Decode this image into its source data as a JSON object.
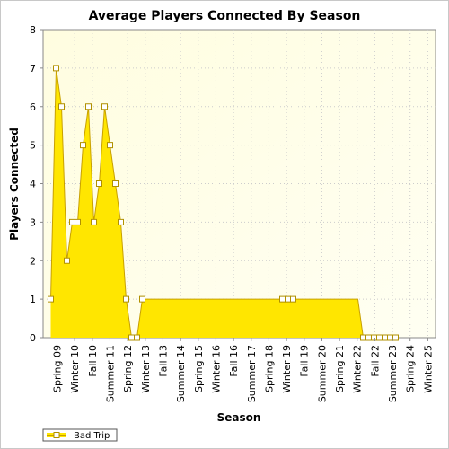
{
  "chart_data": {
    "type": "area",
    "title": "Average Players Connected By Season",
    "xlabel": "Season",
    "ylabel": "Players Connected",
    "ylim": [
      0,
      8
    ],
    "yticks": [
      "0",
      "1",
      "2",
      "3",
      "4",
      "5",
      "6",
      "7",
      "8"
    ],
    "xtick_labels": [
      "Spring 09",
      "Winter 10",
      "Fall 10",
      "Summer 11",
      "Spring 12",
      "Winter 13",
      "Fall 13",
      "Summer 14",
      "Spring 15",
      "Winter 16",
      "Fall 16",
      "Summer 17",
      "Spring 18",
      "Winter 19",
      "Fall 19",
      "Summer 20",
      "Spring 21",
      "Winter 22",
      "Fall 22",
      "Summer 23",
      "Spring 24",
      "Winter 25"
    ],
    "grid": true,
    "legend_position": "bottom-left",
    "series": [
      {
        "name": "Bad Trip",
        "color": "#ffe600",
        "line_color": "#c8a000",
        "values": [
          1,
          7,
          6,
          2,
          3,
          3,
          5,
          6,
          3,
          4,
          6,
          5,
          4,
          3,
          1,
          0,
          0,
          1,
          1,
          1,
          1,
          1,
          1,
          1,
          1,
          1,
          1,
          1,
          1,
          1,
          1,
          1,
          1,
          1,
          1,
          1,
          1,
          1,
          1,
          1,
          1,
          1,
          1,
          1,
          1,
          1,
          1,
          1,
          1,
          1,
          1,
          1,
          1,
          1,
          1,
          1,
          1,
          1,
          0,
          0,
          0,
          0,
          0,
          0,
          0
        ]
      }
    ],
    "marked_points": [
      0,
      1,
      2,
      3,
      4,
      5,
      6,
      7,
      8,
      9,
      10,
      11,
      12,
      13,
      14,
      15,
      16,
      17,
      43,
      44,
      45,
      58,
      59,
      60,
      61,
      62,
      63,
      64
    ]
  }
}
